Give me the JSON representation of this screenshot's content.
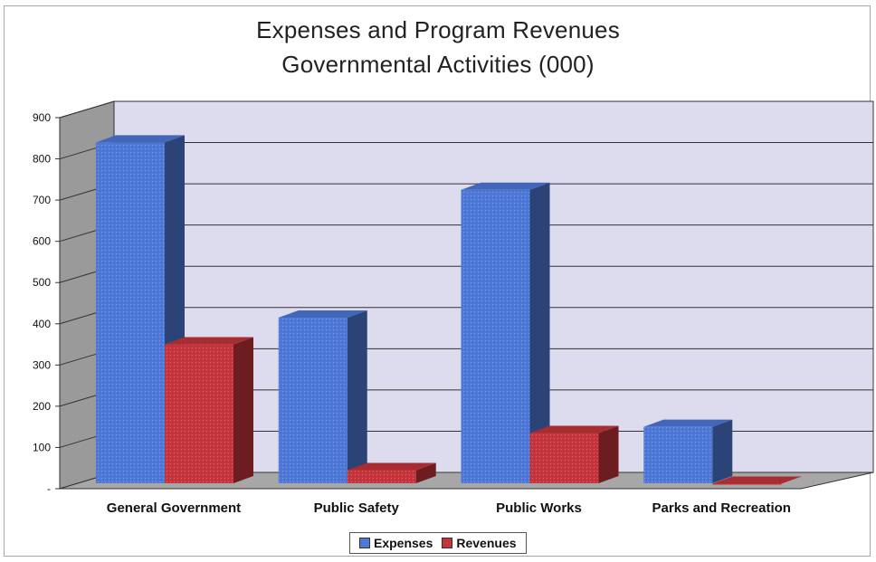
{
  "chart_data": {
    "type": "bar",
    "title": "Expenses and Program Revenues",
    "subtitle": "Governmental Activities (000)",
    "categories": [
      "General Government",
      "Public Safety",
      "Public Works",
      "Parks and Recreation"
    ],
    "series": [
      {
        "name": "Expenses",
        "values": [
          840,
          415,
          725,
          150
        ],
        "color": "#4f79d9"
      },
      {
        "name": "Revenues",
        "values": [
          350,
          45,
          135,
          12
        ],
        "color": "#c6353b"
      }
    ],
    "ylim": [
      0,
      900
    ],
    "y_ticks": [
      "-",
      "100",
      "200",
      "300",
      "400",
      "500",
      "600",
      "700",
      "800",
      "900"
    ],
    "grid": true,
    "legend_position": "bottom",
    "style": "3d-column"
  }
}
